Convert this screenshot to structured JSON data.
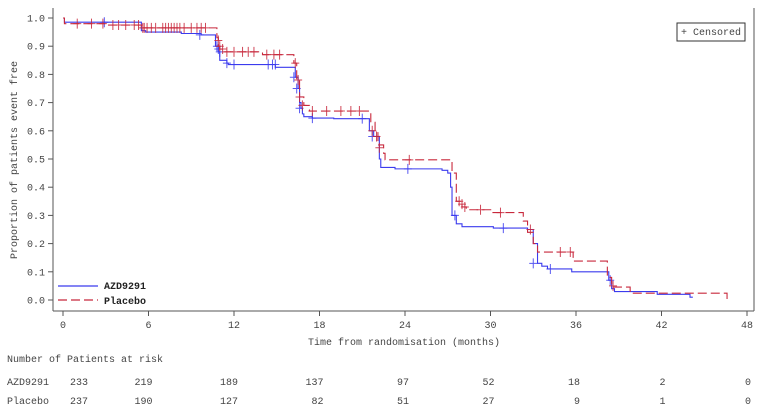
{
  "chart_data": {
    "type": "line",
    "subtype": "kaplan-meier",
    "xlabel": "Time from randomisation (months)",
    "ylabel": "Proportion of patients event free",
    "xlim": [
      0,
      48
    ],
    "ylim": [
      0,
      1.0
    ],
    "xticks": [
      "0",
      "6",
      "12",
      "18",
      "24",
      "30",
      "36",
      "42",
      "48"
    ],
    "yticks": [
      "0.0",
      "0.1",
      "0.2",
      "0.3",
      "0.4",
      "0.5",
      "0.6",
      "0.7",
      "0.8",
      "0.9",
      "1.0"
    ],
    "grid": false,
    "legend_position": "bottom-left",
    "censor_legend": "+ Censored",
    "series": [
      {
        "name": "AZD9291",
        "color": "#3b3bee",
        "line_style": "solid",
        "steps": [
          [
            0,
            1.0
          ],
          [
            0.1,
            0.985
          ],
          [
            5.5,
            0.955
          ],
          [
            5.8,
            0.95
          ],
          [
            8.3,
            0.945
          ],
          [
            9.7,
            0.94
          ],
          [
            10.7,
            0.9
          ],
          [
            10.9,
            0.88
          ],
          [
            11.0,
            0.85
          ],
          [
            11.5,
            0.84
          ],
          [
            11.6,
            0.835
          ],
          [
            14.9,
            0.825
          ],
          [
            16.3,
            0.79
          ],
          [
            16.5,
            0.75
          ],
          [
            16.6,
            0.7
          ],
          [
            16.7,
            0.68
          ],
          [
            16.8,
            0.66
          ],
          [
            16.9,
            0.65
          ],
          [
            17.5,
            0.645
          ],
          [
            19.0,
            0.643
          ],
          [
            21.5,
            0.6
          ],
          [
            21.8,
            0.58
          ],
          [
            22.2,
            0.5
          ],
          [
            22.3,
            0.47
          ],
          [
            23.3,
            0.465
          ],
          [
            26.6,
            0.46
          ],
          [
            27.0,
            0.45
          ],
          [
            27.2,
            0.4
          ],
          [
            27.3,
            0.3
          ],
          [
            27.6,
            0.27
          ],
          [
            28.0,
            0.26
          ],
          [
            30.2,
            0.255
          ],
          [
            32.6,
            0.25
          ],
          [
            33.0,
            0.2
          ],
          [
            33.3,
            0.13
          ],
          [
            33.6,
            0.12
          ],
          [
            34.0,
            0.11
          ],
          [
            35.7,
            0.1
          ],
          [
            38.3,
            0.07
          ],
          [
            38.5,
            0.04
          ],
          [
            38.7,
            0.03
          ],
          [
            41.7,
            0.02
          ],
          [
            44.0,
            0.01
          ],
          [
            44.2,
            0.01
          ]
        ],
        "censored": [
          [
            2.9,
            0.985
          ],
          [
            9.6,
            0.94
          ],
          [
            10.8,
            0.9
          ],
          [
            10.9,
            0.89
          ],
          [
            11.0,
            0.88
          ],
          [
            11.5,
            0.84
          ],
          [
            12.0,
            0.835
          ],
          [
            14.4,
            0.835
          ],
          [
            14.7,
            0.835
          ],
          [
            14.9,
            0.835
          ],
          [
            16.2,
            0.79
          ],
          [
            16.4,
            0.75
          ],
          [
            16.6,
            0.68
          ],
          [
            17.5,
            0.645
          ],
          [
            21.0,
            0.643
          ],
          [
            21.7,
            0.58
          ],
          [
            24.2,
            0.465
          ],
          [
            27.5,
            0.3
          ],
          [
            30.9,
            0.255
          ],
          [
            33.0,
            0.13
          ],
          [
            34.2,
            0.11
          ],
          [
            38.4,
            0.07
          ]
        ]
      },
      {
        "name": "Placebo",
        "color": "#c8283c",
        "line_style": "dashed",
        "steps": [
          [
            0,
            1.0
          ],
          [
            0.1,
            0.98
          ],
          [
            3.0,
            0.975
          ],
          [
            5.5,
            0.965
          ],
          [
            10.8,
            0.93
          ],
          [
            10.9,
            0.9
          ],
          [
            11.0,
            0.89
          ],
          [
            11.3,
            0.88
          ],
          [
            14.0,
            0.87
          ],
          [
            16.2,
            0.84
          ],
          [
            16.4,
            0.78
          ],
          [
            16.6,
            0.72
          ],
          [
            16.9,
            0.69
          ],
          [
            17.3,
            0.67
          ],
          [
            21.6,
            0.63
          ],
          [
            21.9,
            0.6
          ],
          [
            22.1,
            0.55
          ],
          [
            22.5,
            0.52
          ],
          [
            22.6,
            0.497
          ],
          [
            27.3,
            0.45
          ],
          [
            27.6,
            0.35
          ],
          [
            28.0,
            0.33
          ],
          [
            28.3,
            0.32
          ],
          [
            30.1,
            0.31
          ],
          [
            32.3,
            0.28
          ],
          [
            32.6,
            0.24
          ],
          [
            33.0,
            0.2
          ],
          [
            33.3,
            0.17
          ],
          [
            35.8,
            0.138
          ],
          [
            38.2,
            0.08
          ],
          [
            38.5,
            0.046
          ],
          [
            39.8,
            0.024
          ],
          [
            46.6,
            0.0
          ]
        ],
        "censored": [
          [
            1.0,
            0.98
          ],
          [
            2.0,
            0.98
          ],
          [
            2.8,
            0.98
          ],
          [
            3.5,
            0.975
          ],
          [
            3.9,
            0.975
          ],
          [
            4.4,
            0.975
          ],
          [
            5.0,
            0.975
          ],
          [
            5.3,
            0.975
          ],
          [
            5.6,
            0.965
          ],
          [
            5.7,
            0.965
          ],
          [
            5.9,
            0.965
          ],
          [
            6.2,
            0.965
          ],
          [
            6.5,
            0.965
          ],
          [
            7.0,
            0.965
          ],
          [
            7.2,
            0.965
          ],
          [
            7.4,
            0.965
          ],
          [
            7.6,
            0.965
          ],
          [
            7.8,
            0.965
          ],
          [
            8.0,
            0.965
          ],
          [
            8.2,
            0.965
          ],
          [
            8.5,
            0.965
          ],
          [
            9.0,
            0.965
          ],
          [
            9.4,
            0.965
          ],
          [
            9.7,
            0.965
          ],
          [
            10.0,
            0.965
          ],
          [
            10.9,
            0.92
          ],
          [
            11.0,
            0.9
          ],
          [
            11.2,
            0.89
          ],
          [
            11.5,
            0.88
          ],
          [
            12.0,
            0.88
          ],
          [
            12.6,
            0.88
          ],
          [
            13.0,
            0.88
          ],
          [
            13.4,
            0.88
          ],
          [
            14.3,
            0.87
          ],
          [
            14.8,
            0.87
          ],
          [
            15.2,
            0.87
          ],
          [
            16.3,
            0.84
          ],
          [
            16.5,
            0.78
          ],
          [
            16.6,
            0.72
          ],
          [
            16.8,
            0.69
          ],
          [
            17.5,
            0.67
          ],
          [
            18.5,
            0.67
          ],
          [
            19.5,
            0.67
          ],
          [
            20.2,
            0.67
          ],
          [
            20.8,
            0.67
          ],
          [
            21.7,
            0.6
          ],
          [
            22.0,
            0.58
          ],
          [
            22.2,
            0.54
          ],
          [
            24.3,
            0.497
          ],
          [
            27.8,
            0.35
          ],
          [
            28.0,
            0.34
          ],
          [
            28.2,
            0.33
          ],
          [
            29.3,
            0.32
          ],
          [
            30.7,
            0.31
          ],
          [
            32.8,
            0.25
          ],
          [
            34.9,
            0.17
          ],
          [
            35.6,
            0.17
          ],
          [
            38.6,
            0.05
          ]
        ]
      }
    ]
  },
  "risk_table": {
    "title": "Number of Patients at risk",
    "rows": [
      {
        "label": "AZD9291",
        "values": [
          "233",
          "219",
          "189",
          "137",
          "97",
          "52",
          "18",
          "2",
          "0"
        ]
      },
      {
        "label": "Placebo",
        "values": [
          "237",
          "190",
          "127",
          "82",
          "51",
          "27",
          "9",
          "1",
          "0"
        ]
      }
    ]
  }
}
